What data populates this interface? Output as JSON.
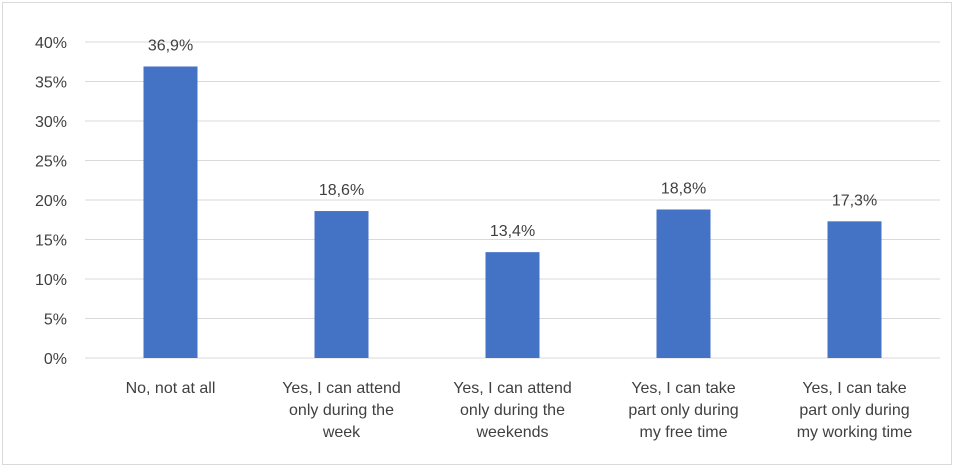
{
  "chart_data": {
    "type": "bar",
    "title": "",
    "xlabel": "",
    "ylabel": "",
    "ylim": [
      0,
      40
    ],
    "yticks": [
      0,
      5,
      10,
      15,
      20,
      25,
      30,
      35,
      40
    ],
    "ytick_labels": [
      "0%",
      "5%",
      "10%",
      "15%",
      "20%",
      "25%",
      "30%",
      "35%",
      "40%"
    ],
    "grid": true,
    "legend": "none",
    "bar_color": "#4472c4",
    "categories": [
      [
        "No, not at all"
      ],
      [
        "Yes, I can attend",
        "only during the",
        "week"
      ],
      [
        "Yes, I can attend",
        "only during the",
        "weekends"
      ],
      [
        "Yes, I can take",
        "part only during",
        "my free time"
      ],
      [
        "Yes, I can take",
        "part only during",
        "my working time"
      ]
    ],
    "values": [
      36.9,
      18.6,
      13.4,
      18.8,
      17.3
    ],
    "data_labels": [
      "36,9%",
      "18,6%",
      "13,4%",
      "18,8%",
      "17,3%"
    ]
  }
}
